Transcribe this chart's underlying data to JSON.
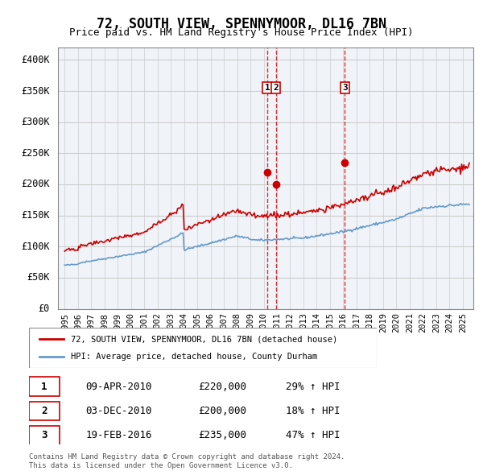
{
  "title": "72, SOUTH VIEW, SPENNYMOOR, DL16 7BN",
  "subtitle": "Price paid vs. HM Land Registry's House Price Index (HPI)",
  "property_label": "72, SOUTH VIEW, SPENNYMOOR, DL16 7BN (detached house)",
  "hpi_label": "HPI: Average price, detached house, County Durham",
  "red_color": "#cc0000",
  "blue_color": "#6699cc",
  "background_color": "#f0f4f8",
  "grid_color": "#cccccc",
  "sale_events": [
    {
      "label": "1",
      "date_num": 2010.27,
      "price": 220000,
      "pct": "29%",
      "date_str": "09-APR-2010"
    },
    {
      "label": "2",
      "date_num": 2010.92,
      "price": 200000,
      "pct": "18%",
      "date_str": "03-DEC-2010"
    },
    {
      "label": "3",
      "date_num": 2016.12,
      "price": 235000,
      "pct": "47%",
      "date_str": "19-FEB-2016"
    }
  ],
  "footer": "Contains HM Land Registry data © Crown copyright and database right 2024.\nThis data is licensed under the Open Government Licence v3.0.",
  "ylim": [
    0,
    420000
  ],
  "yticks": [
    0,
    50000,
    100000,
    150000,
    200000,
    250000,
    300000,
    350000,
    400000
  ],
  "ytick_labels": [
    "£0",
    "£50K",
    "£100K",
    "£150K",
    "£200K",
    "£250K",
    "£300K",
    "£350K",
    "£400K"
  ]
}
